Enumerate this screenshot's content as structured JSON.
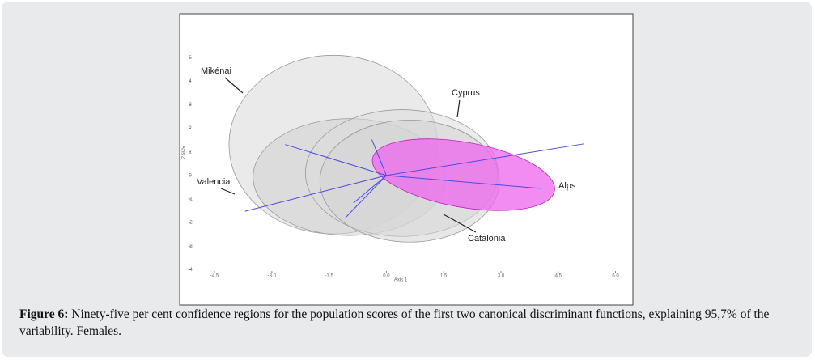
{
  "chart_data": {
    "type": "ellipse-biplot",
    "xlabel": "Axis 1",
    "ylabel": "Axis 2",
    "xlim": [
      -5.2,
      6.2
    ],
    "ylim": [
      -4.4,
      5.9
    ],
    "xticks": [
      -4.5,
      {
        "value": -3,
        "label": "-3.0"
      },
      -1.5,
      {
        "value": 0,
        "label": "0.0"
      },
      1.5,
      {
        "value": 3,
        "label": "3.0"
      },
      4.5,
      {
        "value": 6,
        "label": "6.0"
      }
    ],
    "yticks": [
      5,
      4,
      3,
      2,
      1,
      0,
      -1,
      -2,
      -3,
      -4
    ],
    "series": [
      {
        "name": "Mikénai",
        "color": "#d9d9d9",
        "center": [
          -1.39,
          1.31
        ],
        "radius": [
          2.73,
          3.79
        ]
      },
      {
        "name": "Valencia",
        "color": "#cfcfcf",
        "center": [
          -0.97,
          -0.07
        ],
        "radius": [
          2.52,
          2.48
        ]
      },
      {
        "name": "Cyprus",
        "color": "#dcdcdc",
        "center": [
          0.4,
          0.1
        ],
        "radius": [
          2.52,
          2.69
        ]
      },
      {
        "name": "Catalonia",
        "color": "#d3d3d3",
        "center": [
          0.61,
          -0.24
        ],
        "radius": [
          2.35,
          2.59
        ]
      },
      {
        "name": "Alps",
        "color": "#ee66ee",
        "center": [
          2.02,
          0.03
        ],
        "radius": [
          2.42,
          1.38
        ]
      }
    ],
    "vectors": {
      "color": "#4a4ae0",
      "x": [
        -2.65,
        -3.7,
        5.17,
        4.03,
        -0.38,
        -1.07,
        -0.86
      ],
      "y": [
        1.31,
        -1.52,
        1.34,
        -0.55,
        1.52,
        -1.79,
        -1.17
      ]
    }
  },
  "caption": {
    "label": "Figure 6:",
    "text": "Ninety-five per cent confidence regions for the population scores of the first two canonical discriminant functions, explaining 95,7% of the variability. Females."
  }
}
